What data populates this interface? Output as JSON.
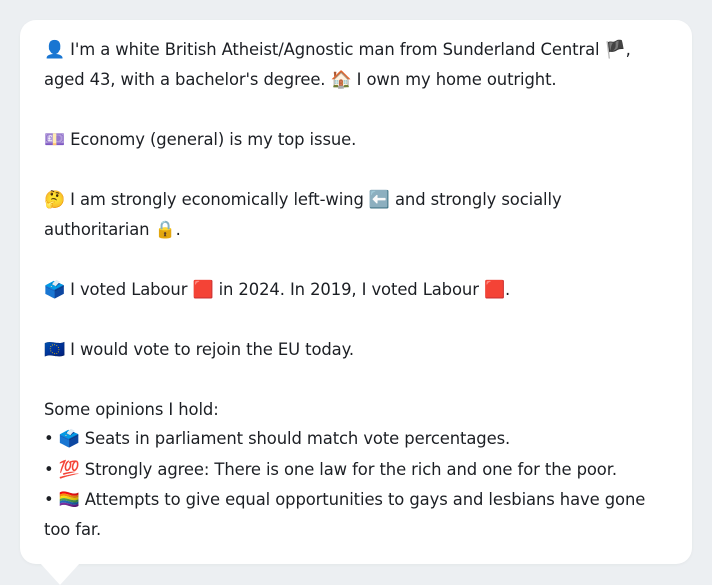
{
  "persona": {
    "intro": {
      "emoji_person": "👤",
      "text1": " I'm a white British Atheist/Agnostic man from Sunderland Central ",
      "emoji_flag": "🏴",
      "text2": ", aged 43, with a bachelor's degree. ",
      "emoji_home": "🏠",
      "text3": " I own my home outright."
    },
    "issue": {
      "emoji": "💷",
      "text": " Economy (general) is my top issue."
    },
    "ideology": {
      "emoji_think": "🤔",
      "text1": " I am strongly economically left-wing ",
      "emoji_left": "⬅️",
      "text2": " and strongly socially authoritarian ",
      "emoji_lock": "🔒",
      "text3": "."
    },
    "votes": {
      "emoji_ballot": "🗳️",
      "text1": " I voted Labour ",
      "emoji_red1": "🟥",
      "text2": " in 2024. In 2019, I voted Labour ",
      "emoji_red2": "🟥",
      "text3": "."
    },
    "eu": {
      "emoji": "🇪🇺",
      "text": " I would vote to rejoin the EU today."
    },
    "opinions_heading": "Some opinions I hold:",
    "opinions": [
      {
        "bullet": "• ",
        "emoji": "🗳️",
        "text": " Seats in parliament should match vote percentages."
      },
      {
        "bullet": "• ",
        "emoji": "💯",
        "text": " Strongly agree: There is one law for the rich and one for the poor."
      },
      {
        "bullet": "• ",
        "emoji": "🏳️‍🌈",
        "text": " Attempts to give equal opportunities to gays and lesbians have gone too far."
      }
    ]
  },
  "colors": {
    "page_background": "#eceff2",
    "bubble_background": "#ffffff",
    "text": "#1c1f24"
  }
}
